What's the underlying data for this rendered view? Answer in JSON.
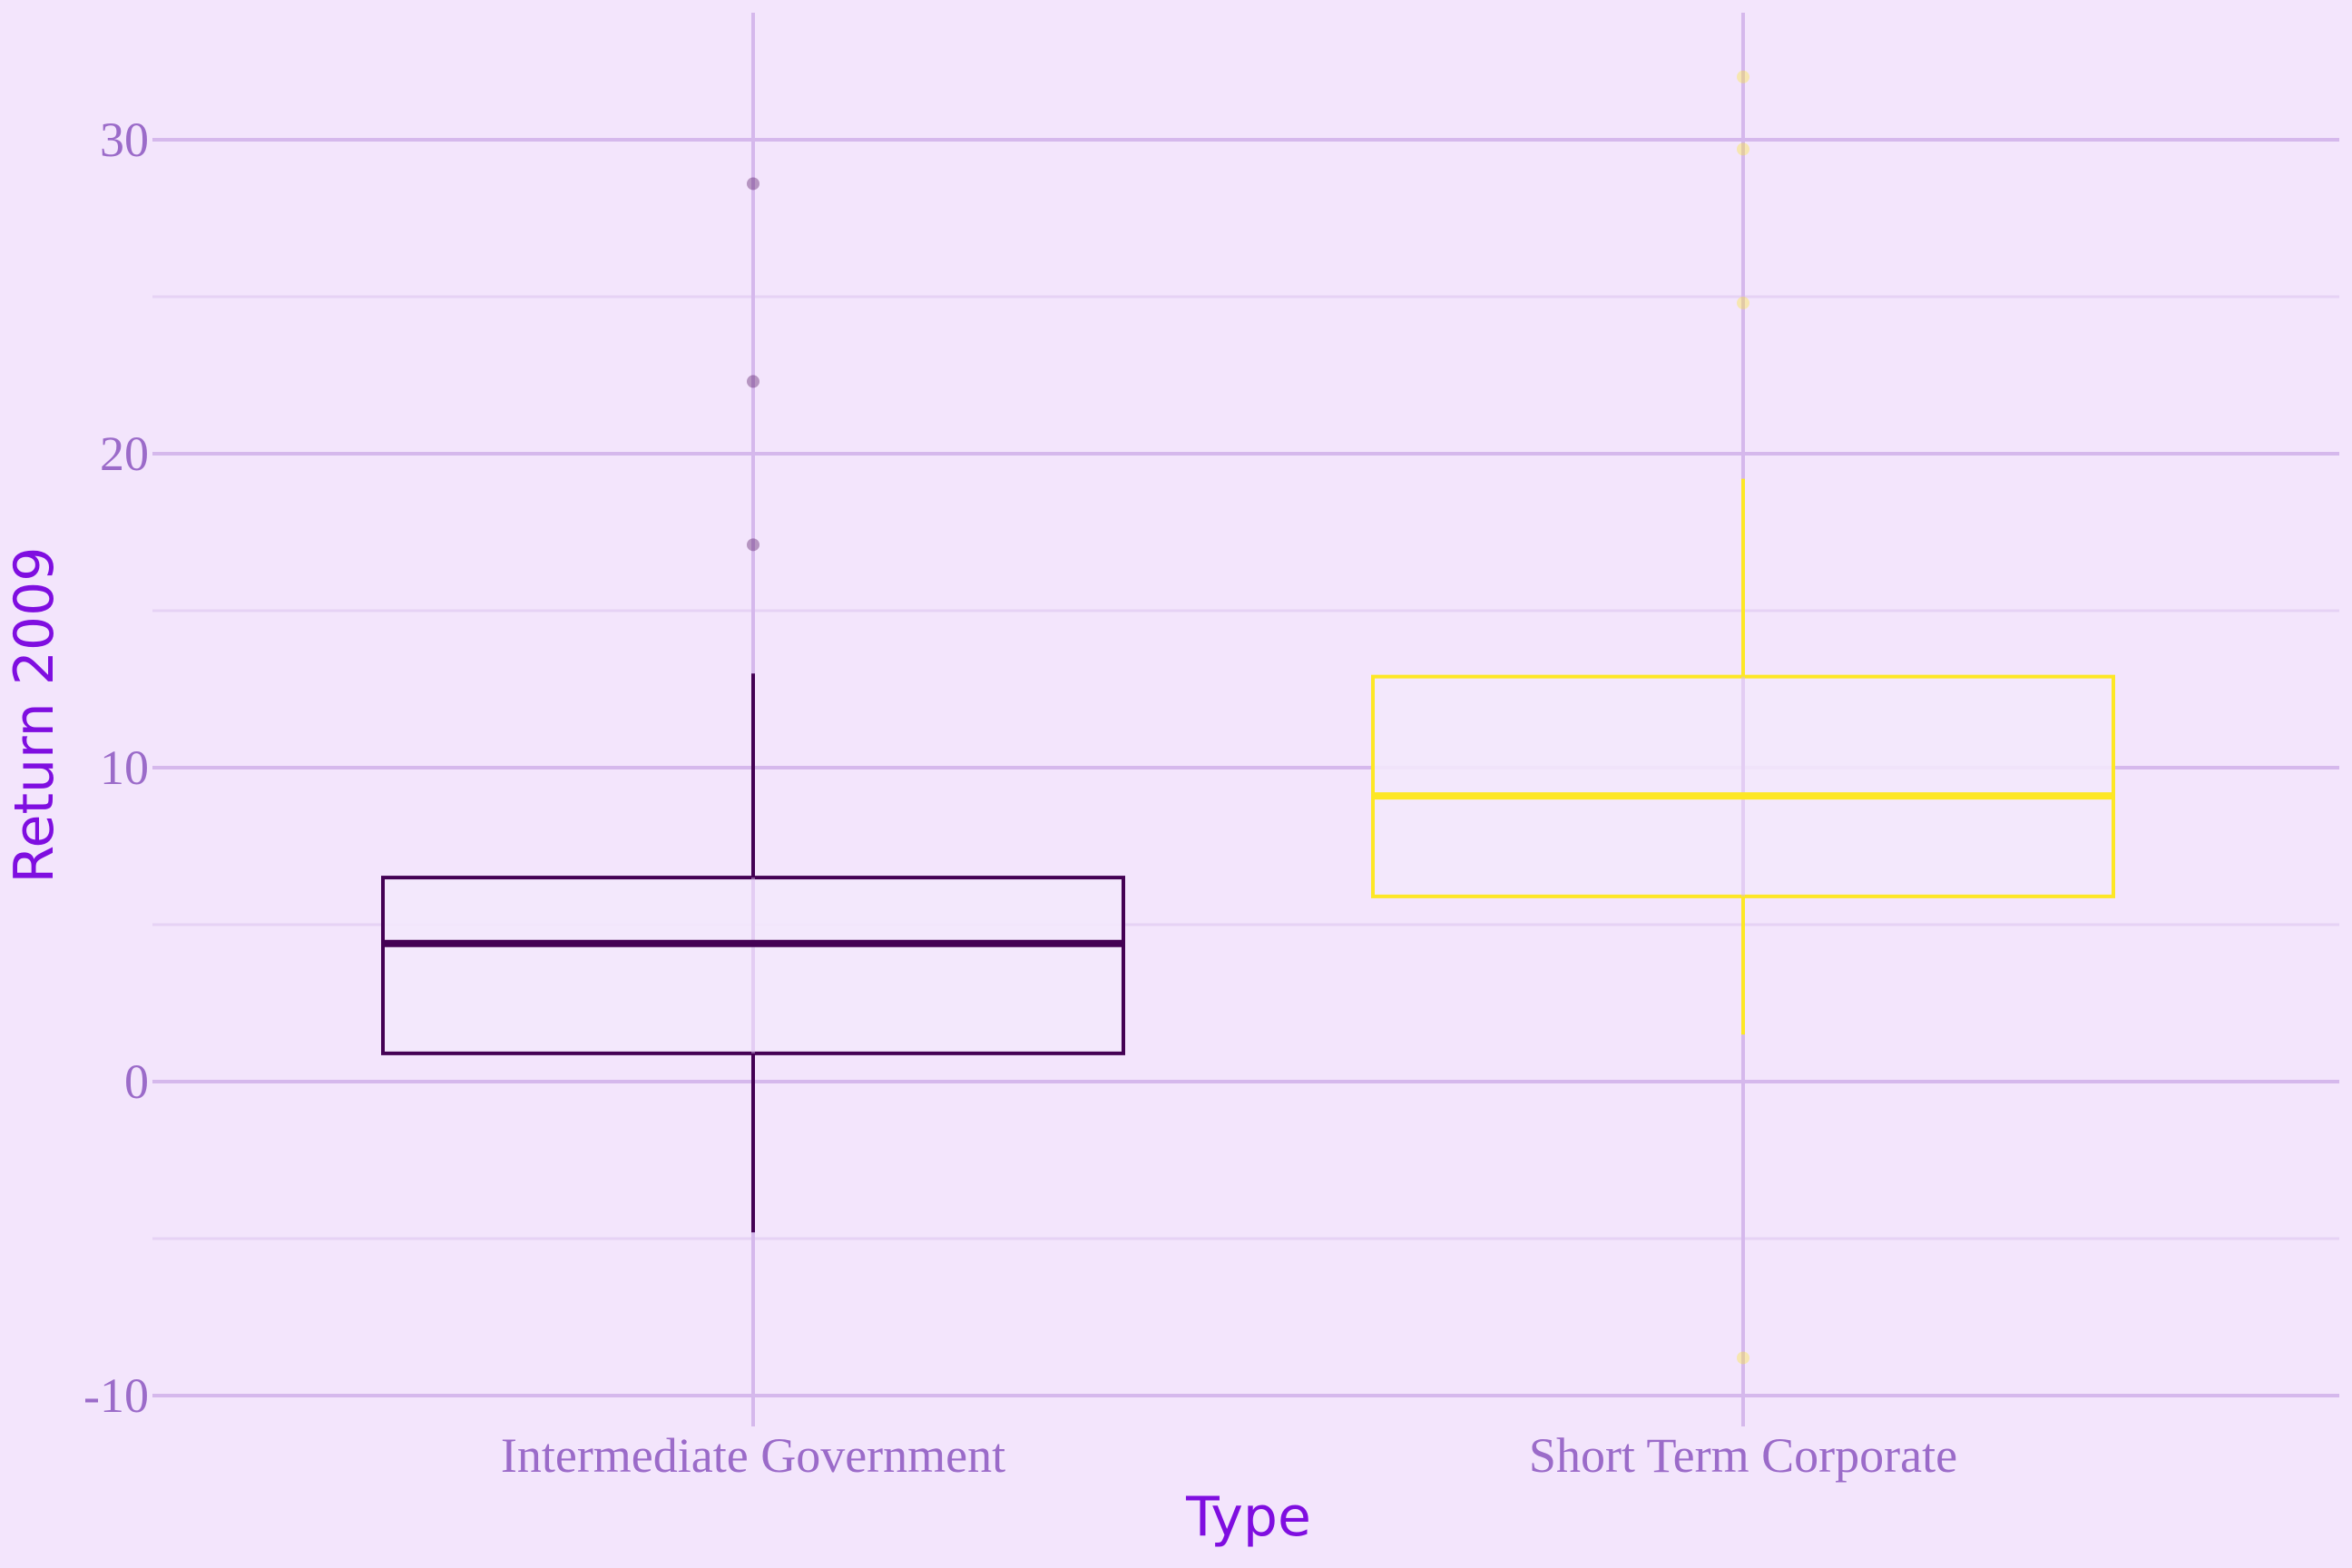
{
  "chart_data": {
    "type": "box",
    "xlabel": "Type",
    "ylabel": "Return 2009",
    "ylim": [
      -10.5,
      34
    ],
    "yticks": [
      -10,
      0,
      10,
      20,
      30
    ],
    "ytick_labels": [
      "-10",
      "0",
      "10",
      "20",
      "30"
    ],
    "grid": true,
    "legend": "none",
    "categories": [
      "Intermediate Government",
      "Short Term Corporate"
    ],
    "boxes": [
      {
        "category": "Intermediate Government",
        "color": "#440154",
        "whisker_low": -4.8,
        "q1": 0.9,
        "median": 4.4,
        "q3": 6.5,
        "whisker_high": 13.0,
        "outliers": [
          28.6,
          22.3,
          17.1
        ]
      },
      {
        "category": "Short Term Corporate",
        "color": "#fde725",
        "whisker_low": 1.5,
        "q1": 5.9,
        "median": 9.1,
        "q3": 12.9,
        "whisker_high": 19.2,
        "outliers": [
          32.0,
          29.7,
          24.8,
          -8.8
        ]
      }
    ],
    "colors": {
      "background": "#f3e5fc",
      "grid_major": "#d5b8ec",
      "grid_minor": "#e6d2f5",
      "box_fill": "#f3e8fc",
      "tick_text": "#9b6bc9",
      "title_text": "#7f0ee0"
    }
  }
}
